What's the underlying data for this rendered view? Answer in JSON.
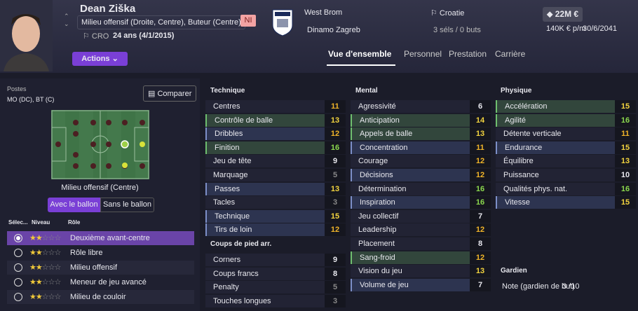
{
  "header": {
    "name": "Dean Ziška",
    "positions": "Milieu offensif (Droite, Centre), Buteur (Centre)",
    "nationality": "CRO",
    "age": "24 ans (4/1/2015)",
    "badge": "NI",
    "clubs": [
      "West Brom",
      "Dinamo Zagreb"
    ],
    "country": "Croatie",
    "caps": "3 séls / 0 buts",
    "value": "22M €",
    "wage": "140K € p/m",
    "contract": "30/6/2041",
    "actions": "Actions"
  },
  "tabs": [
    "Vue d'ensemble",
    "Personnel",
    "Prestation",
    "Carrière"
  ],
  "positions_panel": {
    "label": "Postes",
    "positions": "MO (DC), BT (C)",
    "compare": "Comparer",
    "role_position": "Milieu offensif (Centre)",
    "toggles": [
      "Avec le ballon",
      "Sans le ballon"
    ],
    "columns": [
      "Sélec...",
      "Niveau",
      "Rôle"
    ],
    "roles": [
      {
        "name": "Deuxième avant-centre",
        "level": 2,
        "selected": true
      },
      {
        "name": "Rôle libre",
        "level": 2
      },
      {
        "name": "Milieu offensif",
        "level": 2
      },
      {
        "name": "Meneur de jeu avancé",
        "level": 2
      },
      {
        "name": "Milieu de couloir",
        "level": 2
      }
    ]
  },
  "attributes": {
    "columns": [
      [
        {
          "title": "Technique",
          "rows": [
            {
              "name": "Centres",
              "value": 11
            },
            {
              "name": "Contrôle de balle",
              "value": 13,
              "highlight": "green"
            },
            {
              "name": "Dribbles",
              "value": 12,
              "highlight": "blue"
            },
            {
              "name": "Finition",
              "value": 16,
              "highlight": "green"
            },
            {
              "name": "Jeu de tête",
              "value": 9
            },
            {
              "name": "Marquage",
              "value": 5
            },
            {
              "name": "Passes",
              "value": 13,
              "highlight": "blue"
            },
            {
              "name": "Tacles",
              "value": 3
            },
            {
              "name": "Technique",
              "value": 15,
              "highlight": "blue"
            },
            {
              "name": "Tirs de loin",
              "value": 12,
              "highlight": "blue"
            }
          ]
        },
        {
          "title": "Coups de pied arr.",
          "rows": [
            {
              "name": "Corners",
              "value": 9
            },
            {
              "name": "Coups francs",
              "value": 8
            },
            {
              "name": "Penalty",
              "value": 5
            },
            {
              "name": "Touches longues",
              "value": 3
            }
          ]
        }
      ],
      [
        {
          "title": "Mental",
          "rows": [
            {
              "name": "Agressivité",
              "value": 6
            },
            {
              "name": "Anticipation",
              "value": 14,
              "highlight": "green"
            },
            {
              "name": "Appels de balle",
              "value": 13,
              "highlight": "green"
            },
            {
              "name": "Concentration",
              "value": 11,
              "highlight": "blue"
            },
            {
              "name": "Courage",
              "value": 12
            },
            {
              "name": "Décisions",
              "value": 12,
              "highlight": "blue"
            },
            {
              "name": "Détermination",
              "value": 16
            },
            {
              "name": "Inspiration",
              "value": 16,
              "highlight": "blue"
            },
            {
              "name": "Jeu collectif",
              "value": 7
            },
            {
              "name": "Leadership",
              "value": 12
            },
            {
              "name": "Placement",
              "value": 8
            },
            {
              "name": "Sang-froid",
              "value": 12,
              "highlight": "green"
            },
            {
              "name": "Vision du jeu",
              "value": 13
            },
            {
              "name": "Volume de jeu",
              "value": 7,
              "highlight": "blue"
            }
          ]
        }
      ],
      [
        {
          "title": "Physique",
          "rows": [
            {
              "name": "Accélération",
              "value": 15,
              "highlight": "green"
            },
            {
              "name": "Agilité",
              "value": 16,
              "highlight": "green"
            },
            {
              "name": "Détente verticale",
              "value": 11
            },
            {
              "name": "Endurance",
              "value": 15,
              "highlight": "blue"
            },
            {
              "name": "Équilibre",
              "value": 13
            },
            {
              "name": "Puissance",
              "value": 10
            },
            {
              "name": "Qualités phys. nat.",
              "value": 16
            },
            {
              "name": "Vitesse",
              "value": 15,
              "highlight": "blue"
            }
          ]
        },
        {
          "title": "Gardien",
          "rows": [
            {
              "name": "Note (gardien de but)",
              "value": "3 /10"
            }
          ]
        }
      ]
    ]
  }
}
